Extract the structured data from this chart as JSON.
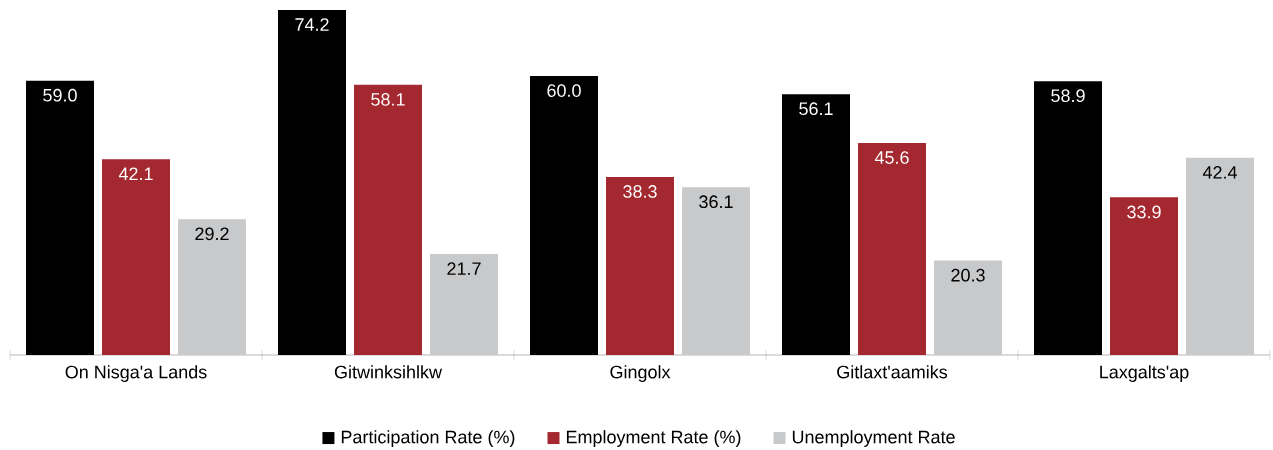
{
  "chart_data": {
    "type": "bar",
    "categories": [
      "On Nisga'a Lands",
      "Gitwinksihlkw",
      "Gingolx",
      "Gitlaxt'aamiks",
      "Laxgalts'ap"
    ],
    "series": [
      {
        "name": "Participation Rate (%)",
        "color": "#000000",
        "values": [
          59.0,
          74.2,
          60.0,
          56.1,
          58.9
        ],
        "value_labels": [
          "59.0",
          "74.2",
          "60.0",
          "56.1",
          "58.9"
        ]
      },
      {
        "name": "Employment Rate (%)",
        "color": "#a4282f",
        "values": [
          42.1,
          58.1,
          38.3,
          45.6,
          33.9
        ],
        "value_labels": [
          "42.1",
          "58.1",
          "38.3",
          "45.6",
          "33.9"
        ]
      },
      {
        "name": "Unemployment Rate",
        "color": "#c8c9cb",
        "values": [
          29.2,
          21.7,
          36.1,
          20.3,
          42.4
        ],
        "value_labels": [
          "29.2",
          "21.7",
          "36.1",
          "20.3",
          "42.4"
        ]
      }
    ],
    "legend": "bottom"
  }
}
